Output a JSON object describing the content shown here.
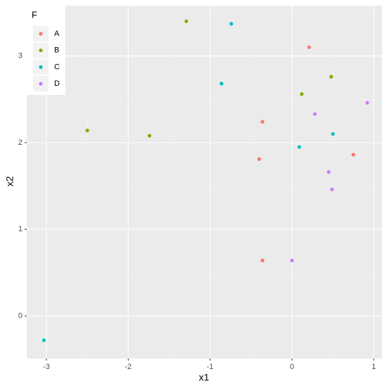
{
  "chart_data": {
    "type": "scatter",
    "x_label": "x1",
    "y_label": "x2",
    "legend_title": "F",
    "xlim": [
      -3.24,
      1.1
    ],
    "ylim": [
      -0.49,
      3.58
    ],
    "xticks": [
      -3,
      -2,
      -1,
      0,
      1
    ],
    "yticks": [
      0,
      1,
      2,
      3
    ],
    "grid": true,
    "legend_position": "top-left",
    "series": [
      {
        "name": "A",
        "color": "#F8766D",
        "x": [
          0.21,
          -0.36,
          -0.4,
          0.75,
          -0.36
        ],
        "values": [
          3.1,
          2.24,
          1.81,
          1.86,
          0.64
        ]
      },
      {
        "name": "B",
        "color": "#7CAE00",
        "x": [
          -1.29,
          0.48,
          0.12,
          -2.5,
          -1.74
        ],
        "values": [
          3.4,
          2.76,
          2.56,
          2.14,
          2.08
        ]
      },
      {
        "name": "C",
        "color": "#00BFC4",
        "x": [
          -0.74,
          -0.86,
          0.5,
          0.09,
          -3.03
        ],
        "values": [
          3.37,
          2.68,
          2.1,
          1.95,
          -0.28
        ]
      },
      {
        "name": "D",
        "color": "#C77CFF",
        "x": [
          0.92,
          0.28,
          0.45,
          0.49,
          0.0
        ],
        "values": [
          2.46,
          2.33,
          1.66,
          1.46,
          0.64
        ]
      }
    ]
  }
}
